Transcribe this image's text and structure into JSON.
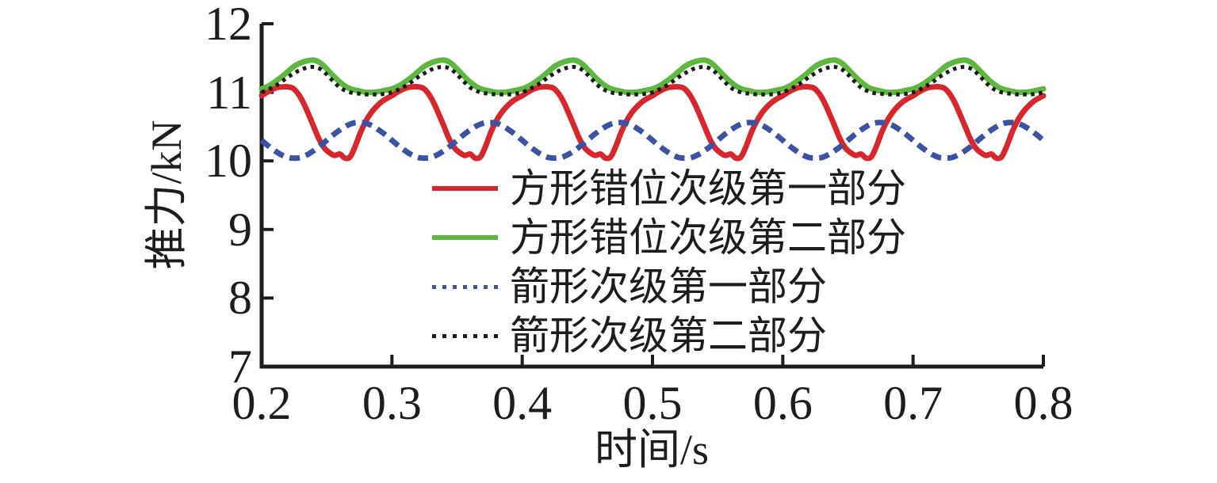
{
  "figure": {
    "background": "#ffffff",
    "text_color": "#1d1d1d",
    "axis_color": "#1d1d1d"
  },
  "chart_data": {
    "type": "line",
    "title": "",
    "xlabel": "时间/s",
    "ylabel": "推力/kN",
    "xlim": [
      0.2,
      0.8
    ],
    "ylim": [
      7,
      12
    ],
    "xtick_labels": [
      "0.2",
      "0.3",
      "0.4",
      "0.5",
      "0.6",
      "0.7",
      "0.8"
    ],
    "xtick_values": [
      0.2,
      0.3,
      0.4,
      0.5,
      0.6,
      0.7,
      0.8
    ],
    "ytick_labels": [
      "7",
      "8",
      "9",
      "10",
      "11",
      "12"
    ],
    "ytick_values": [
      7,
      8,
      9,
      10,
      11,
      12
    ],
    "grid": false,
    "legend_position": "inside-lower-middle",
    "waveform_note": "All series are periodic thrust ripples, period 0.1 s, defined over t = 0.2 s to 0.8 s by phase_points [phase 0-1, thrust kN]",
    "series": [
      {
        "name": "方形错位次级第一部分",
        "color": "#d7262c",
        "style": "solid",
        "width": 7,
        "period_s": 0.1,
        "t_start": 0.2,
        "t_end": 0.8,
        "phase_points": [
          [
            0.0,
            10.95
          ],
          [
            0.04,
            11.0
          ],
          [
            0.08,
            11.04
          ],
          [
            0.12,
            11.07
          ],
          [
            0.16,
            11.08
          ],
          [
            0.2,
            11.08
          ],
          [
            0.24,
            11.06
          ],
          [
            0.28,
            10.98
          ],
          [
            0.32,
            10.85
          ],
          [
            0.36,
            10.68
          ],
          [
            0.4,
            10.5
          ],
          [
            0.44,
            10.32
          ],
          [
            0.48,
            10.19
          ],
          [
            0.52,
            10.12
          ],
          [
            0.56,
            10.08
          ],
          [
            0.6,
            10.1
          ],
          [
            0.64,
            10.04
          ],
          [
            0.68,
            10.06
          ],
          [
            0.72,
            10.22
          ],
          [
            0.76,
            10.42
          ],
          [
            0.8,
            10.58
          ],
          [
            0.84,
            10.7
          ],
          [
            0.88,
            10.79
          ],
          [
            0.92,
            10.86
          ],
          [
            0.96,
            10.91
          ]
        ]
      },
      {
        "name": "方形错位次级第二部分",
        "color": "#5cb83e",
        "style": "solid",
        "width": 7,
        "period_s": 0.1,
        "t_start": 0.2,
        "t_end": 0.8,
        "phase_points": [
          [
            0.0,
            11.05
          ],
          [
            0.05,
            11.09
          ],
          [
            0.1,
            11.15
          ],
          [
            0.15,
            11.22
          ],
          [
            0.2,
            11.3
          ],
          [
            0.25,
            11.38
          ],
          [
            0.3,
            11.43
          ],
          [
            0.35,
            11.46
          ],
          [
            0.4,
            11.47
          ],
          [
            0.45,
            11.43
          ],
          [
            0.5,
            11.34
          ],
          [
            0.55,
            11.24
          ],
          [
            0.6,
            11.15
          ],
          [
            0.65,
            11.08
          ],
          [
            0.7,
            11.04
          ],
          [
            0.75,
            11.02
          ],
          [
            0.8,
            11.0
          ],
          [
            0.85,
            11.0
          ],
          [
            0.9,
            11.01
          ],
          [
            0.95,
            11.03
          ]
        ]
      },
      {
        "name": "箭形次级第一部分",
        "color": "#3a53a4",
        "style": "dashed",
        "width": 7,
        "period_s": 0.1,
        "t_start": 0.2,
        "t_end": 0.8,
        "phase_points": [
          [
            0.0,
            10.3
          ],
          [
            0.05,
            10.22
          ],
          [
            0.1,
            10.15
          ],
          [
            0.15,
            10.09
          ],
          [
            0.2,
            10.05
          ],
          [
            0.25,
            10.04
          ],
          [
            0.3,
            10.05
          ],
          [
            0.35,
            10.09
          ],
          [
            0.4,
            10.15
          ],
          [
            0.45,
            10.22
          ],
          [
            0.5,
            10.3
          ],
          [
            0.55,
            10.38
          ],
          [
            0.6,
            10.45
          ],
          [
            0.65,
            10.51
          ],
          [
            0.7,
            10.55
          ],
          [
            0.75,
            10.56
          ],
          [
            0.8,
            10.55
          ],
          [
            0.85,
            10.51
          ],
          [
            0.9,
            10.45
          ],
          [
            0.95,
            10.38
          ]
        ]
      },
      {
        "name": "箭形次级第二部分",
        "color": "#1b1b1b",
        "style": "dotted",
        "width": 5,
        "period_s": 0.1,
        "t_start": 0.2,
        "t_end": 0.8,
        "phase_points": [
          [
            0.0,
            11.0
          ],
          [
            0.05,
            11.04
          ],
          [
            0.1,
            11.09
          ],
          [
            0.15,
            11.15
          ],
          [
            0.2,
            11.22
          ],
          [
            0.25,
            11.28
          ],
          [
            0.3,
            11.33
          ],
          [
            0.35,
            11.36
          ],
          [
            0.4,
            11.37
          ],
          [
            0.45,
            11.34
          ],
          [
            0.5,
            11.26
          ],
          [
            0.55,
            11.16
          ],
          [
            0.6,
            11.07
          ],
          [
            0.65,
            11.02
          ],
          [
            0.7,
            10.99
          ],
          [
            0.75,
            10.98
          ],
          [
            0.8,
            10.97
          ],
          [
            0.85,
            10.97
          ],
          [
            0.9,
            10.97
          ],
          [
            0.95,
            10.98
          ]
        ]
      }
    ]
  }
}
